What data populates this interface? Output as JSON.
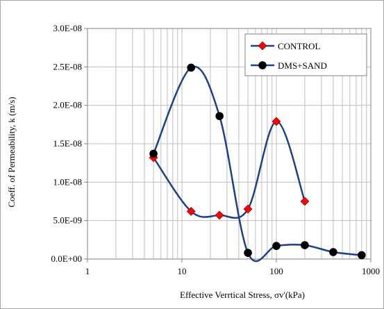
{
  "chart_data": {
    "type": "line",
    "title": "",
    "xlabel": "Effective Verrtical Stress, σv'(kPa)",
    "ylabel": "Coeff. of Permeability, k (m/s)",
    "x_scale": "log",
    "xlim": [
      1,
      1000
    ],
    "ylim": [
      0,
      3e-08
    ],
    "x_ticks": [
      1,
      10,
      100,
      1000
    ],
    "x_tick_labels": [
      "1",
      "10",
      "100",
      "1000"
    ],
    "y_ticks": [
      0,
      5e-09,
      1e-08,
      1.5e-08,
      2e-08,
      2.5e-08,
      3e-08
    ],
    "y_tick_labels": [
      "0.0E+00",
      "5.0E-09",
      "1.0E-08",
      "1.5E-08",
      "2.0E-08",
      "2.5E-08",
      "3.0E-08"
    ],
    "grid": "vertical log gridlines, horizontal major gridlines",
    "legend_position": "top-right",
    "series": [
      {
        "name": "CONTROL",
        "marker": "diamond",
        "line_color": "#1f3f8a",
        "marker_color": "#ff0000",
        "x": [
          5,
          12.5,
          25,
          50,
          100,
          200
        ],
        "y": [
          1.32e-08,
          6.2e-09,
          5.7e-09,
          6.5e-09,
          1.79e-08,
          7.5e-09
        ]
      },
      {
        "name": "DMS+SAND",
        "marker": "circle",
        "line_color": "#1f3f8a",
        "marker_color": "#000000",
        "x": [
          5,
          12.5,
          25,
          50,
          100,
          200,
          400,
          800
        ],
        "y": [
          1.37e-08,
          2.49e-08,
          1.86e-08,
          8e-10,
          1.7e-09,
          1.8e-09,
          9e-10,
          5e-10
        ]
      }
    ]
  }
}
